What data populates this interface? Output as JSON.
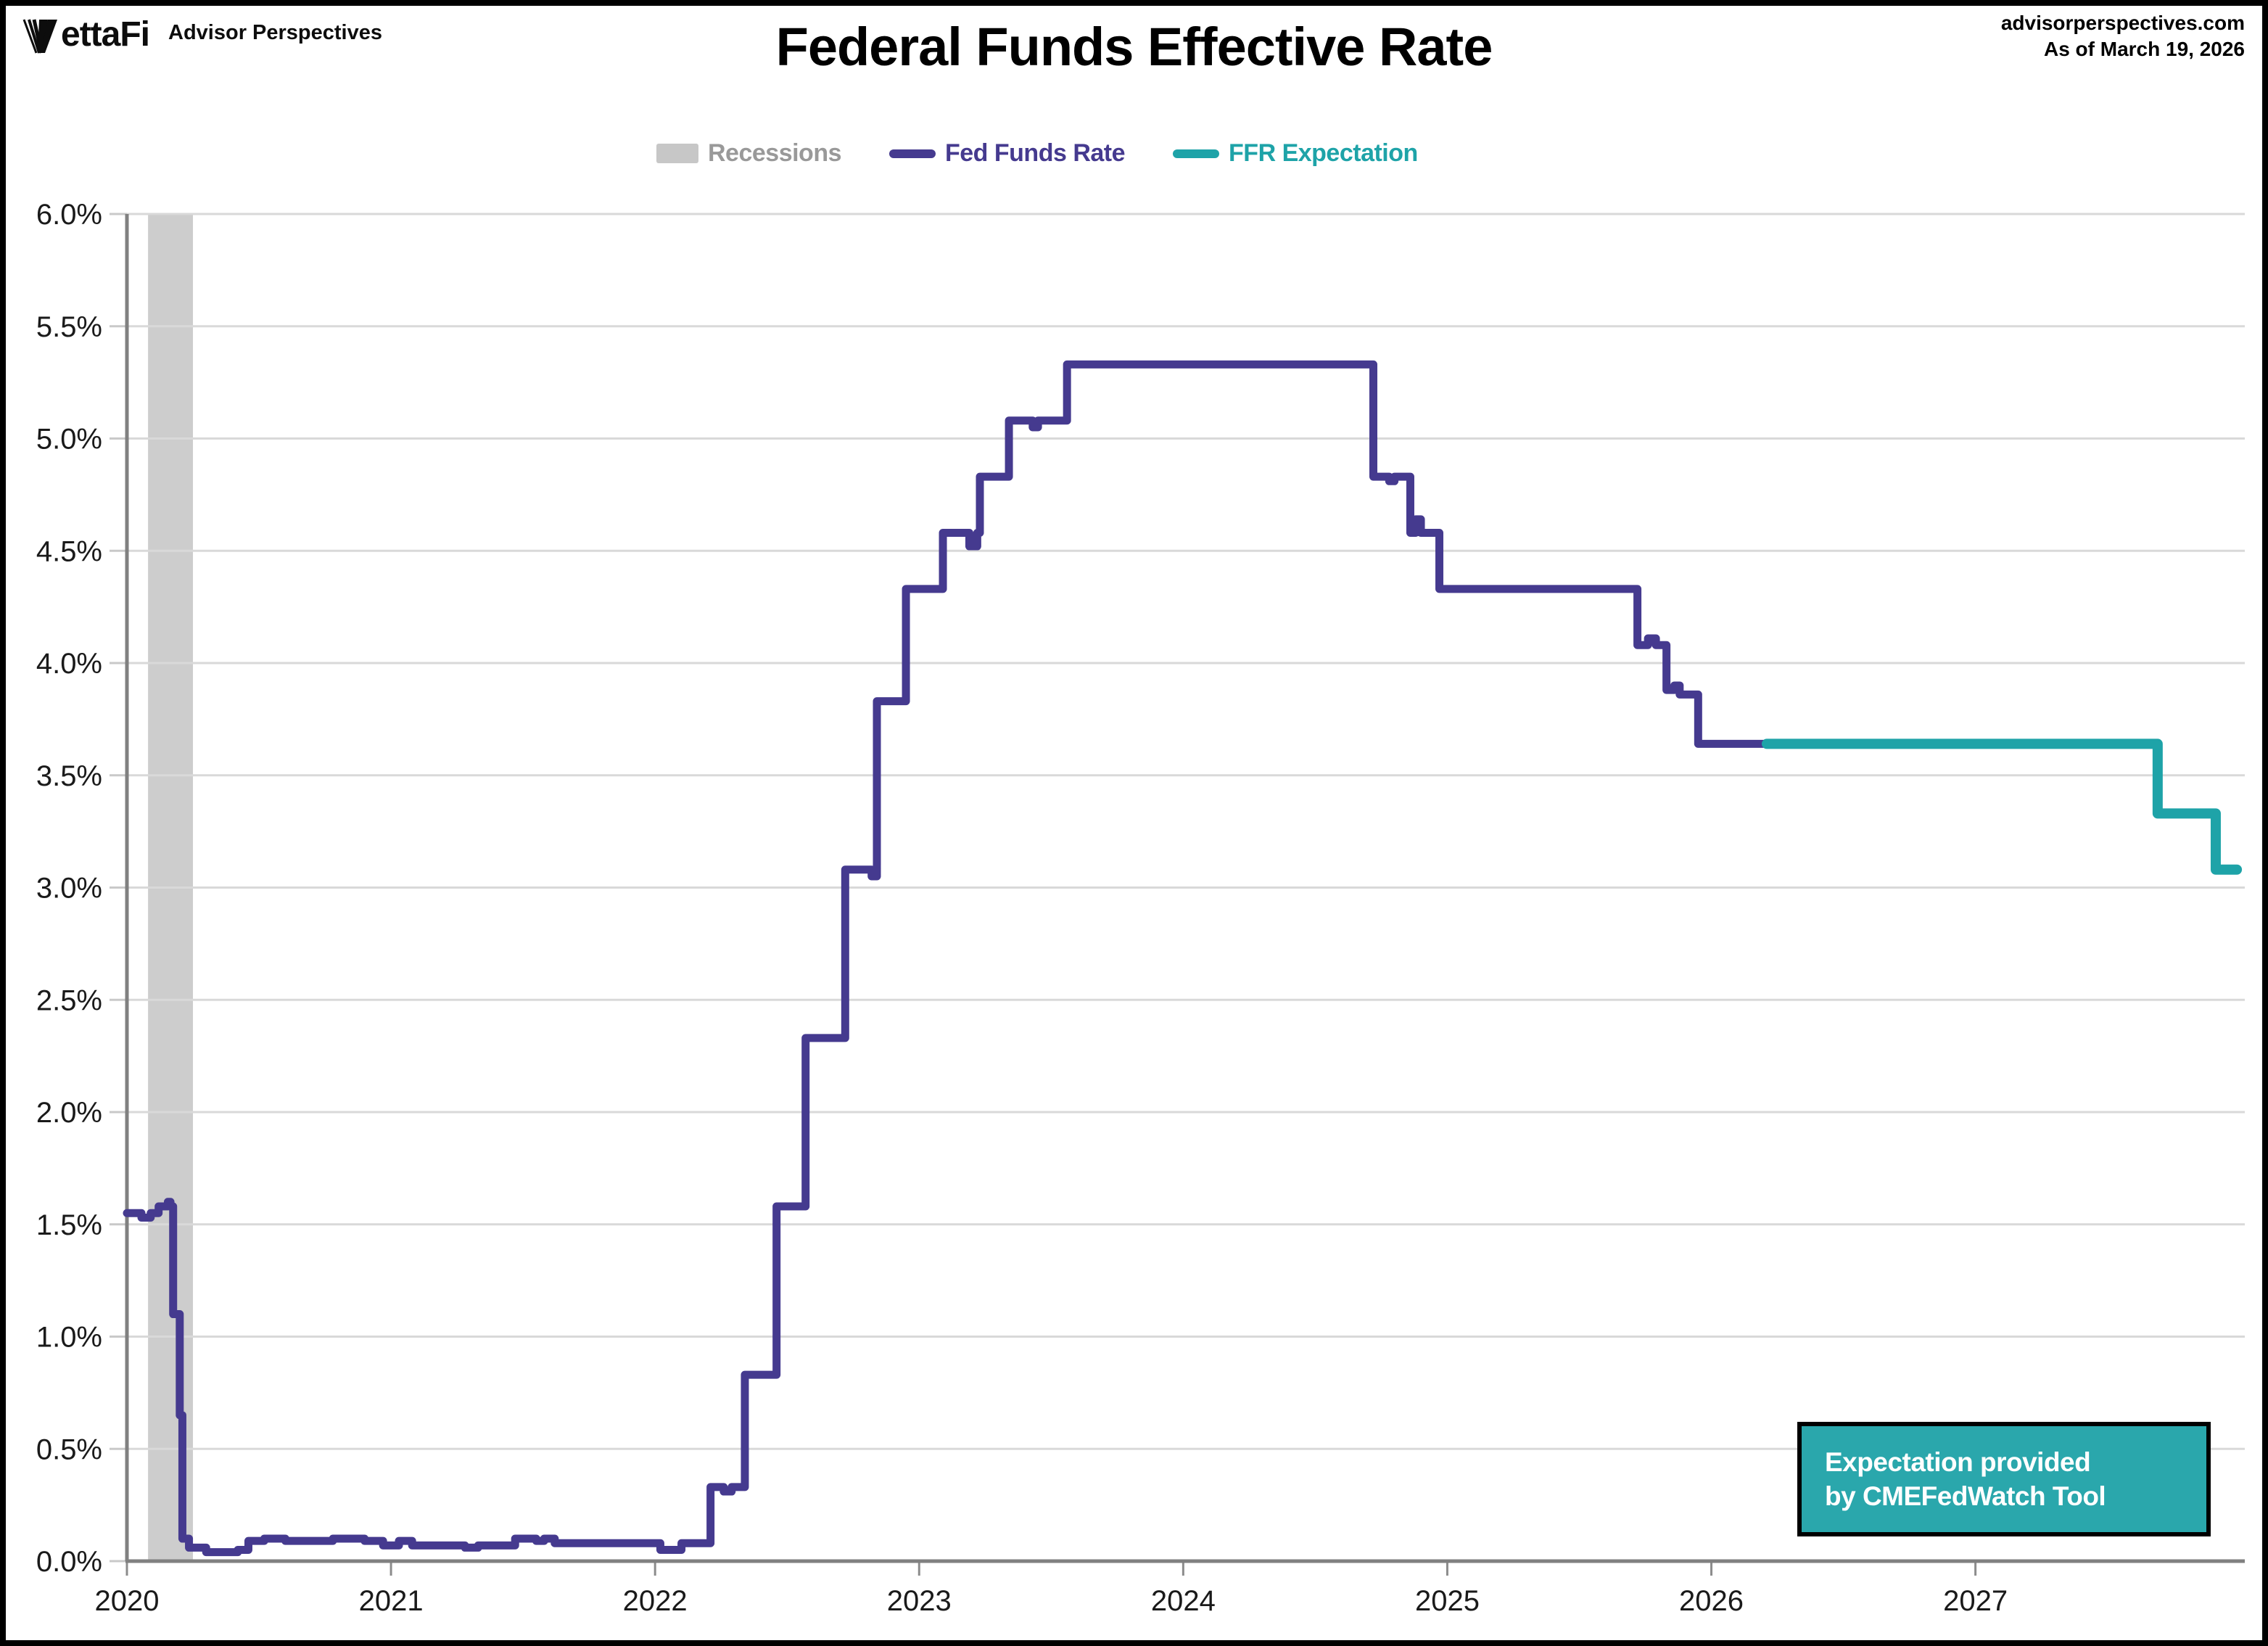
{
  "header": {
    "logo_text": "VettaFi",
    "logo_word_rest": "ettaFi",
    "logo_subtitle": "Advisor Perspectives",
    "site": "advisorperspectives.com",
    "as_of": "As of March 19, 2026"
  },
  "title": "Federal Funds Effective Rate",
  "legend": {
    "items": [
      {
        "label": "Recessions",
        "swatch": "box",
        "color": "#c7c7c7",
        "text_color": "#999999"
      },
      {
        "label": "Fed Funds Rate",
        "swatch": "line",
        "color": "#453A8F",
        "text_color": "#453A8F"
      },
      {
        "label": "FFR Expectation",
        "swatch": "line",
        "color": "#1EA3A8",
        "text_color": "#1EA3A8"
      }
    ]
  },
  "note_box": {
    "lines": [
      "Expectation provided",
      "by CMEFedWatch Tool"
    ],
    "bg_color": "#2AA7AC"
  },
  "chart_data": {
    "type": "line",
    "step": true,
    "title": "Federal Funds Effective Rate",
    "xlabel": "",
    "ylabel": "",
    "grid": "horizontal",
    "x_axis": {
      "range": [
        2020,
        2028.02
      ],
      "tick_labels": [
        "2020",
        "2021",
        "2022",
        "2023",
        "2024",
        "2025",
        "2026",
        "2027"
      ],
      "tick_values": [
        2020,
        2021,
        2022,
        2023,
        2024,
        2025,
        2026,
        2027
      ]
    },
    "y_axis": {
      "range": [
        0,
        6
      ],
      "tick_labels": [
        "0.0%",
        "0.5%",
        "1.0%",
        "1.5%",
        "2.0%",
        "2.5%",
        "3.0%",
        "3.5%",
        "4.0%",
        "4.5%",
        "5.0%",
        "5.5%",
        "6.0%"
      ],
      "tick_values": [
        0,
        0.5,
        1,
        1.5,
        2,
        2.5,
        3,
        3.5,
        4,
        4.5,
        5,
        5.5,
        6
      ]
    },
    "recessions": [
      {
        "start": 2020.08,
        "end": 2020.25
      }
    ],
    "series": [
      {
        "name": "Fed Funds Rate",
        "color": "#453A8F",
        "width": 11,
        "points": [
          [
            2020.0,
            1.55
          ],
          [
            2020.055,
            1.53
          ],
          [
            2020.09,
            1.55
          ],
          [
            2020.12,
            1.58
          ],
          [
            2020.155,
            1.6
          ],
          [
            2020.165,
            1.58
          ],
          [
            2020.175,
            1.1
          ],
          [
            2020.2,
            0.65
          ],
          [
            2020.21,
            0.1
          ],
          [
            2020.235,
            0.06
          ],
          [
            2020.3,
            0.04
          ],
          [
            2020.42,
            0.05
          ],
          [
            2020.46,
            0.09
          ],
          [
            2020.52,
            0.1
          ],
          [
            2020.6,
            0.09
          ],
          [
            2020.78,
            0.1
          ],
          [
            2020.9,
            0.09
          ],
          [
            2020.97,
            0.07
          ],
          [
            2021.03,
            0.09
          ],
          [
            2021.08,
            0.07
          ],
          [
            2021.28,
            0.06
          ],
          [
            2021.33,
            0.07
          ],
          [
            2021.47,
            0.1
          ],
          [
            2021.55,
            0.09
          ],
          [
            2021.58,
            0.1
          ],
          [
            2021.62,
            0.08
          ],
          [
            2021.95,
            0.08
          ],
          [
            2022.02,
            0.05
          ],
          [
            2022.1,
            0.08
          ],
          [
            2022.21,
            0.33
          ],
          [
            2022.26,
            0.31
          ],
          [
            2022.29,
            0.33
          ],
          [
            2022.34,
            0.83
          ],
          [
            2022.46,
            1.58
          ],
          [
            2022.57,
            2.33
          ],
          [
            2022.72,
            3.08
          ],
          [
            2022.82,
            3.05
          ],
          [
            2022.84,
            3.83
          ],
          [
            2022.95,
            4.33
          ],
          [
            2023.09,
            4.58
          ],
          [
            2023.19,
            4.52
          ],
          [
            2023.22,
            4.58
          ],
          [
            2023.23,
            4.83
          ],
          [
            2023.34,
            5.08
          ],
          [
            2023.43,
            5.05
          ],
          [
            2023.45,
            5.08
          ],
          [
            2023.56,
            5.33
          ],
          [
            2024.72,
            4.83
          ],
          [
            2024.78,
            4.81
          ],
          [
            2024.8,
            4.83
          ],
          [
            2024.86,
            4.58
          ],
          [
            2024.88,
            4.64
          ],
          [
            2024.9,
            4.58
          ],
          [
            2024.97,
            4.33
          ],
          [
            2025.72,
            4.08
          ],
          [
            2025.76,
            4.11
          ],
          [
            2025.79,
            4.08
          ],
          [
            2025.83,
            3.88
          ],
          [
            2025.86,
            3.9
          ],
          [
            2025.88,
            3.86
          ],
          [
            2025.95,
            3.64
          ],
          [
            2026.21,
            3.64
          ]
        ]
      },
      {
        "name": "FFR Expectation",
        "color": "#1EA3A8",
        "width": 14,
        "points": [
          [
            2026.21,
            3.64
          ],
          [
            2027.69,
            3.33
          ],
          [
            2027.91,
            3.08
          ],
          [
            2027.99,
            3.08
          ]
        ]
      }
    ]
  }
}
